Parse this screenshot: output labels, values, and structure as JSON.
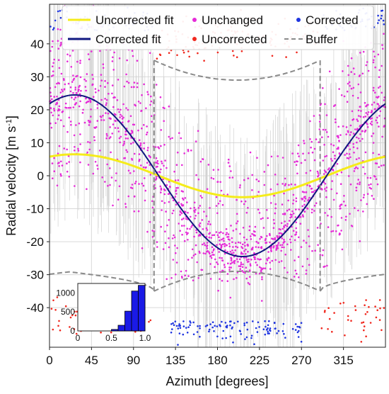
{
  "chart_data": {
    "type": "scatter",
    "title": "",
    "xlabel": "Azimuth [degrees]",
    "ylabel_main": "Radial velocity [m s",
    "ylabel_sup": "-1",
    "ylabel_end": "]",
    "xlim": [
      0,
      360
    ],
    "ylim": [
      -52,
      52
    ],
    "grid": true,
    "x_ticks": [
      0,
      45,
      90,
      135,
      180,
      225,
      270,
      315
    ],
    "x_tick_labels": [
      "0",
      "45",
      "90",
      "135",
      "180",
      "225",
      "270",
      "315"
    ],
    "y_ticks": [
      40,
      30,
      20,
      10,
      0,
      -10,
      -20,
      -30,
      -40
    ],
    "y_tick_labels": [
      "40",
      "30",
      "20",
      "10",
      "0",
      "-10",
      "-20",
      "-30",
      "-40"
    ],
    "legend": {
      "placement": "top",
      "entries": [
        {
          "name": "Uncorrected fit",
          "style": "line",
          "color": "#f5ec1a"
        },
        {
          "name": "Unchanged",
          "style": "dot",
          "color": "#e62bd8"
        },
        {
          "name": "Corrected",
          "style": "dot",
          "color": "#1f35e0"
        },
        {
          "name": "Corrected fit",
          "style": "line",
          "color": "#101880"
        },
        {
          "name": "Uncorrected",
          "style": "dot",
          "color": "#f0281e"
        },
        {
          "name": "Buffer",
          "style": "dashed",
          "color": "#8a8a8a"
        }
      ]
    },
    "series": [
      {
        "name": "Uncorrected fit",
        "kind": "sine",
        "amplitude": 6.5,
        "phase_deg": 27,
        "offset": 0,
        "color": "#f5ec1a"
      },
      {
        "name": "Corrected fit",
        "kind": "sine",
        "amplitude": 24.5,
        "phase_deg": 27,
        "offset": 0,
        "color": "#101880"
      },
      {
        "name": "Buffer",
        "kind": "buffer",
        "x_start": 112,
        "x_end": 290,
        "outer_top_edge": 28.5,
        "outer_top_mid": 33,
        "inner_top_edge": 35,
        "inner_top_mid": 29,
        "color": "#8a8a8a"
      }
    ],
    "scatter_groups": [
      {
        "name": "Unchanged",
        "color": "#e62bd8",
        "count": 1500
      },
      {
        "name": "Uncorrected",
        "color": "#f0281e",
        "count": 220
      },
      {
        "name": "Corrected",
        "color": "#1f35e0",
        "count": 220
      }
    ],
    "inset": {
      "type": "histogram",
      "xlim": [
        0,
        1.0
      ],
      "ylim": [
        0,
        1250
      ],
      "x_ticks": [
        0,
        0.5,
        1.0
      ],
      "x_tick_labels": [
        "0",
        "0.5",
        "1.0"
      ],
      "y_ticks": [
        0,
        500,
        1000
      ],
      "y_tick_labels": [
        "0",
        "500",
        "1000"
      ],
      "bins": [
        {
          "from": 0.5,
          "to": 0.6,
          "count": 40
        },
        {
          "from": 0.6,
          "to": 0.7,
          "count": 150
        },
        {
          "from": 0.7,
          "to": 0.8,
          "count": 520
        },
        {
          "from": 0.8,
          "to": 0.9,
          "count": 1050
        },
        {
          "from": 0.9,
          "to": 1.0,
          "count": 1200
        }
      ],
      "color": "#1a1ae6"
    }
  }
}
